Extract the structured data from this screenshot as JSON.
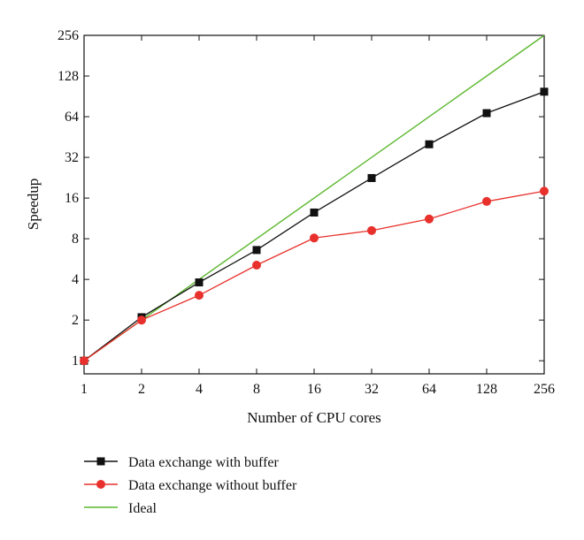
{
  "chart_data": {
    "type": "line",
    "xlabel": "Number of CPU cores",
    "ylabel": "Speedup",
    "x_scale": "log2",
    "y_scale": "log2",
    "xlim": [
      1,
      256
    ],
    "ylim": [
      0.8,
      256
    ],
    "x_ticks": [
      "1",
      "2",
      "4",
      "8",
      "16",
      "32",
      "64",
      "128",
      "256"
    ],
    "y_ticks": [
      "1",
      "2",
      "4",
      "8",
      "16",
      "32",
      "64",
      "128",
      "256"
    ],
    "grid": false,
    "legend_position": "bottom-left, below plot",
    "series": [
      {
        "name": "Data exchange with buffer",
        "color": "#111111",
        "marker": "square",
        "x": [
          1,
          2,
          4,
          8,
          16,
          32,
          64,
          128,
          256
        ],
        "y": [
          1,
          2.1,
          3.8,
          6.6,
          12.5,
          22.5,
          40,
          68,
          98
        ]
      },
      {
        "name": "Data exchange without buffer",
        "color": "#e8312c",
        "marker": "circle",
        "x": [
          1,
          2,
          4,
          8,
          16,
          32,
          64,
          128,
          256
        ],
        "y": [
          1,
          2,
          3.05,
          5.1,
          8.1,
          9.2,
          11.2,
          15.1,
          18
        ]
      },
      {
        "name": "Ideal",
        "color": "#5cb82e",
        "marker": "none",
        "x": [
          1,
          256
        ],
        "y": [
          1,
          256
        ]
      }
    ]
  }
}
